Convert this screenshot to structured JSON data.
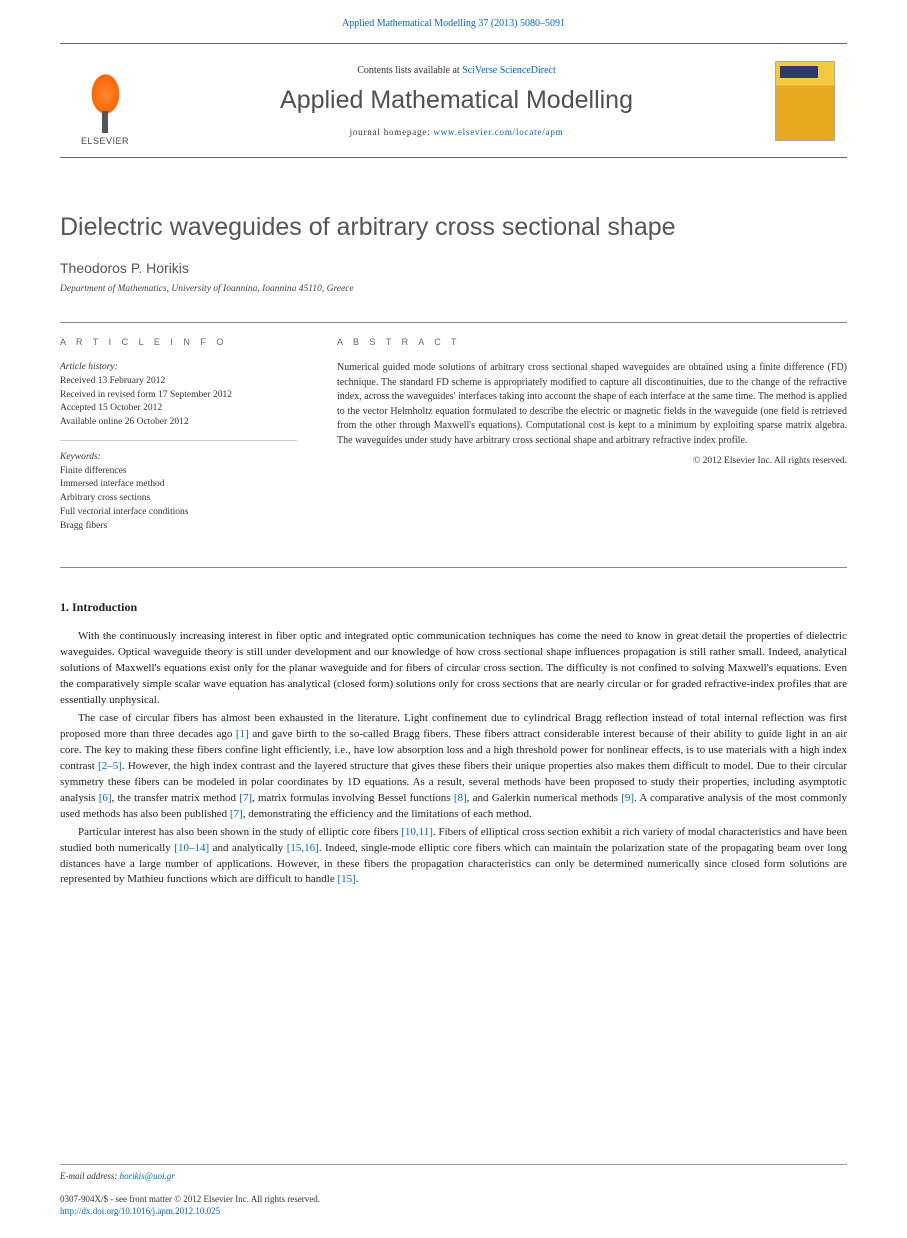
{
  "header": {
    "citation": "Applied Mathematical Modelling 37 (2013) 5080–5091"
  },
  "masthead": {
    "publisher": "ELSEVIER",
    "contents_prefix": "Contents lists available at ",
    "contents_link": "SciVerse ScienceDirect",
    "journal_name": "Applied Mathematical Modelling",
    "homepage_prefix": "journal homepage: ",
    "homepage_url": "www.elsevier.com/locate/apm"
  },
  "title_section": {
    "title": "Dielectric waveguides of arbitrary cross sectional shape",
    "author": "Theodoros P. Horikis",
    "affiliation": "Department of Mathematics, University of Ioannina, Ioannina 45110, Greece"
  },
  "article_info": {
    "heading": "A R T I C L E   I N F O",
    "history_label": "Article history:",
    "history_lines": [
      "Received 13 February 2012",
      "Received in revised form 17 September 2012",
      "Accepted 15 October 2012",
      "Available online 26 October 2012"
    ],
    "keywords_label": "Keywords:",
    "keywords": [
      "Finite differences",
      "Immersed interface method",
      "Arbitrary cross sections",
      "Full vectorial interface conditions",
      "Bragg fibers"
    ]
  },
  "abstract": {
    "heading": "A B S T R A C T",
    "text": "Numerical guided mode solutions of arbitrary cross sectional shaped waveguides are obtained using a finite difference (FD) technique. The standard FD scheme is appropriately modified to capture all discontinuities, due to the change of the refractive index, across the waveguides' interfaces taking into account the shape of each interface at the same time. The method is applied to the vector Helmholtz equation formulated to describe the electric or magnetic fields in the waveguide (one field is retrieved from the other through Maxwell's equations). Computational cost is kept to a minimum by exploiting sparse matrix algebra. The waveguides under study have arbitrary cross sectional shape and arbitrary refractive index profile.",
    "copyright": "© 2012 Elsevier Inc. All rights reserved."
  },
  "body": {
    "section_heading": "1. Introduction",
    "para1_a": "With the continuously increasing interest in fiber optic and integrated optic communication techniques has come the need to know in great detail the properties of dielectric waveguides. Optical waveguide theory is still under development and our knowledge of how cross sectional shape influences propagation is still rather small. Indeed, analytical solutions of Maxwell's equations exist only for the planar waveguide and for fibers of circular cross section. The difficulty is not confined to solving Maxwell's equations. Even the comparatively simple scalar wave equation has analytical (closed form) solutions only for cross sections that are nearly circular or for graded refractive-index profiles that are essentially unphysical.",
    "para2_a": "The case of circular fibers has almost been exhausted in the literature. Light confinement due to cylindrical Bragg reflection instead of total internal reflection was first proposed more than three decades ago ",
    "ref1": "[1]",
    "para2_b": " and gave birth to the so-called Bragg fibers. These fibers attract considerable interest because of their ability to guide light in an air core. The key to making these fibers confine light efficiently, i.e., have low absorption loss and a high threshold power for nonlinear effects, is to use materials with a high index contrast ",
    "ref2_5": "[2–5]",
    "para2_c": ". However, the high index contrast and the layered structure that gives these fibers their unique properties also makes them difficult to model. Due to their circular symmetry these fibers can be modeled in polar coordinates by 1D equations. As a result, several methods have been proposed to study their properties, including asymptotic analysis ",
    "ref6": "[6]",
    "para2_d": ", the transfer matrix method ",
    "ref7a": "[7]",
    "para2_e": ", matrix formulas involving Bessel functions ",
    "ref8": "[8]",
    "para2_f": ", and Galerkin numerical methods ",
    "ref9": "[9]",
    "para2_g": ". A comparative analysis of the most commonly used methods has also been published ",
    "ref7b": "[7]",
    "para2_h": ", demonstrating the efficiency and the limitations of each method.",
    "para3_a": "Particular interest has also been shown in the study of elliptic core fibers ",
    "ref10_11": "[10,11]",
    "para3_b": ". Fibers of elliptical cross section exhibit a rich variety of modal characteristics and have been studied both numerically ",
    "ref10_14": "[10–14]",
    "para3_c": " and analytically ",
    "ref15_16": "[15,16]",
    "para3_d": ". Indeed, single-mode elliptic core fibers which can maintain the polarization state of the propagating beam over long distances have a large number of applications. However, in these fibers the propagation characteristics can only be determined numerically since closed form solutions are represented by Mathieu functions which are difficult to handle ",
    "ref15": "[15]",
    "para3_e": "."
  },
  "footnotes": {
    "email_label": "E-mail address: ",
    "email": "horikis@uoi.gr",
    "issn_line": "0307-904X/$ - see front matter © 2012 Elsevier Inc. All rights reserved.",
    "doi": "http://dx.doi.org/10.1016/j.apm.2012.10.025"
  },
  "colors": {
    "link": "#0066cc",
    "text": "#333333",
    "heading_grey": "#555555",
    "rule": "#888888",
    "elsevier_orange": "#ff7711"
  }
}
